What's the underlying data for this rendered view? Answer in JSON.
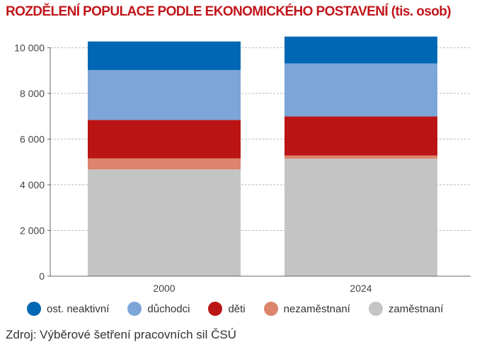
{
  "chart_data": {
    "type": "bar",
    "stacked": true,
    "title": "ROZDĚLENÍ POPULACE PODLE EKONOMICKÉHO POSTAVENÍ (tis. osob)",
    "categories": [
      "2000",
      "2024"
    ],
    "series": [
      {
        "name": "zaměstnaní",
        "color": "#c4c4c4",
        "values": [
          4670,
          5140
        ]
      },
      {
        "name": "nezaměstnaní",
        "color": "#dc856c",
        "values": [
          485,
          140
        ]
      },
      {
        "name": "děti",
        "color": "#bb1414",
        "values": [
          1680,
          1710
        ]
      },
      {
        "name": "důchodci",
        "color": "#7ca5d8",
        "values": [
          2185,
          2320
        ]
      },
      {
        "name": "ost. neaktivní",
        "color": "#0067b4",
        "values": [
          1250,
          1175
        ]
      }
    ],
    "legend_order": [
      "ost. neaktivní",
      "důchodci",
      "děti",
      "nezaměstnaní",
      "zaměstnaní"
    ],
    "ylim": [
      0,
      10000
    ],
    "yticks": [
      0,
      2000,
      4000,
      6000,
      8000,
      10000
    ],
    "ytick_labels": [
      "0",
      "2 000",
      "4 000",
      "6 000",
      "8 000",
      "10 000"
    ],
    "grid": true,
    "legend_position": "bottom"
  },
  "source": "Zdroj: Výběrové šetření pracovních sil ČSÚ"
}
